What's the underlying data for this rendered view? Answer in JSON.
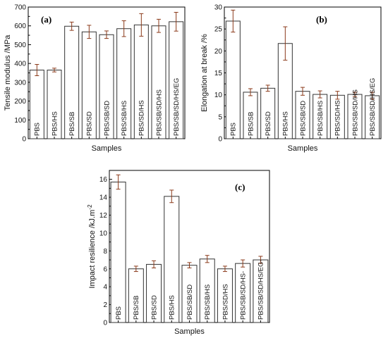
{
  "chart_data": [
    {
      "type": "bar",
      "panel_label": "(a)",
      "xlabel": "Samples",
      "ylabel": "Tensile modulus /MPa",
      "ylim": [
        0,
        700
      ],
      "yticks": [
        0,
        100,
        200,
        300,
        400,
        500,
        600,
        700
      ],
      "categories": [
        "PBS",
        "PBS/HS",
        "PBS/SB",
        "PBS/SD",
        "PBS/SB/SD",
        "PBS/SB/HS",
        "PBS/SD/HS",
        "PBS/SB/SD/HS",
        "PBS/SB/SD/HS/EG"
      ],
      "values": [
        365,
        365,
        598,
        568,
        553,
        585,
        605,
        600,
        622
      ],
      "errors": [
        30,
        10,
        22,
        35,
        20,
        42,
        60,
        35,
        50
      ],
      "colors": {
        "bar_fill": "#ffffff",
        "bar_stroke": "#333333",
        "error_bar": "#8b3a1a"
      }
    },
    {
      "type": "bar",
      "panel_label": "(b)",
      "xlabel": "Samples",
      "ylabel": "Elongation at break /%",
      "ylim": [
        0,
        30
      ],
      "yticks": [
        0,
        5,
        10,
        15,
        20,
        25,
        30
      ],
      "categories": [
        "PBS",
        "PBS/SB",
        "PBS/SD",
        "PBS/HS",
        "PBS/SB/SD",
        "PBS/SB/HS",
        "PBS/SD/HS",
        "PBS/SB/SD/HS",
        "PBS/SB/SD/HS/EG"
      ],
      "values": [
        26.8,
        10.6,
        11.5,
        21.7,
        10.8,
        10.1,
        9.9,
        10.1,
        9.8
      ],
      "errors": [
        2.5,
        0.8,
        0.7,
        3.8,
        0.9,
        0.8,
        0.9,
        0.5,
        0.8
      ],
      "colors": {
        "bar_fill": "#ffffff",
        "bar_stroke": "#333333",
        "error_bar": "#8b3a1a"
      }
    },
    {
      "type": "bar",
      "panel_label": "(c)",
      "xlabel": "Samples",
      "ylabel": "Impact resilience /kJ.m",
      "ylabel_superscript": "-2",
      "ylim": [
        0,
        17
      ],
      "yticks": [
        0,
        2,
        4,
        6,
        8,
        10,
        12,
        14,
        16
      ],
      "categories": [
        "PBS",
        "PBS/SB",
        "PBS/SD",
        "PBS/HS",
        "PBS/SB/SD",
        "PBS/SB/HS",
        "PBS/SD/HS",
        "PBS/SB/SD/HS-",
        "PBS/SB/SD/HS/EG-"
      ],
      "values": [
        15.7,
        6.0,
        6.5,
        14.1,
        6.4,
        7.1,
        6.0,
        6.6,
        7.0
      ],
      "errors": [
        0.8,
        0.3,
        0.4,
        0.7,
        0.3,
        0.4,
        0.3,
        0.4,
        0.4
      ],
      "colors": {
        "bar_fill": "#ffffff",
        "bar_stroke": "#333333",
        "error_bar": "#8b3a1a"
      }
    }
  ]
}
